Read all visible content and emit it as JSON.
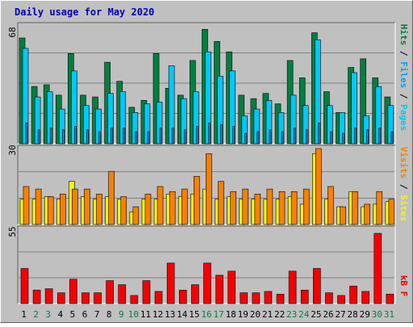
{
  "title": "Daily usage for May 2020",
  "colors": {
    "background": "#c0c0c0",
    "plot": "#c0c0c0",
    "title": "#0000c0",
    "hits": "#008040",
    "files": "#00c8f8",
    "pages": "#00a0ff",
    "visits": "#f88000",
    "sites": "#f8f800",
    "kbytes": "#f80000",
    "weekday": "#000000",
    "weekend": "#008040"
  },
  "chart_data": [
    {
      "type": "bar",
      "panel": "hits-files-pages",
      "ymax_label": "68",
      "ylim": [
        0,
        68
      ],
      "legend": [
        "Pages",
        "Files",
        "Hits"
      ],
      "categories": [
        "1",
        "2",
        "3",
        "4",
        "5",
        "6",
        "7",
        "8",
        "9",
        "10",
        "11",
        "12",
        "13",
        "14",
        "15",
        "16",
        "17",
        "18",
        "19",
        "20",
        "21",
        "22",
        "23",
        "24",
        "25",
        "26",
        "27",
        "28",
        "29",
        "30",
        "31"
      ],
      "series": [
        {
          "name": "Hits",
          "values": [
            61,
            33,
            34,
            28,
            52,
            28,
            27,
            47,
            36,
            21,
            25,
            52,
            32,
            28,
            48,
            66,
            59,
            53,
            28,
            26,
            29,
            23,
            48,
            38,
            64,
            30,
            18,
            44,
            49,
            38,
            27
          ]
        },
        {
          "name": "Files",
          "values": [
            55,
            27,
            30,
            20,
            42,
            22,
            20,
            29,
            30,
            18,
            23,
            24,
            45,
            26,
            30,
            53,
            39,
            42,
            16,
            20,
            25,
            18,
            28,
            22,
            60,
            22,
            18,
            41,
            16,
            33,
            22
          ]
        },
        {
          "name": "Pages",
          "values": [
            12,
            8,
            9,
            8,
            10,
            8,
            7,
            9,
            9,
            7,
            7,
            9,
            9,
            8,
            10,
            12,
            11,
            10,
            6,
            7,
            8,
            7,
            9,
            8,
            12,
            7,
            6,
            9,
            8,
            9,
            7
          ]
        }
      ]
    },
    {
      "type": "bar",
      "panel": "visits-sites",
      "ymax_label": "30",
      "ylim": [
        0,
        30
      ],
      "legend": [
        "Sites",
        "Visits"
      ],
      "categories": [
        "1",
        "2",
        "3",
        "4",
        "5",
        "6",
        "7",
        "8",
        "9",
        "10",
        "11",
        "12",
        "13",
        "14",
        "15",
        "16",
        "17",
        "18",
        "19",
        "20",
        "21",
        "22",
        "23",
        "24",
        "25",
        "26",
        "27",
        "28",
        "29",
        "30",
        "31"
      ],
      "series": [
        {
          "name": "Sites",
          "values": [
            10,
            10,
            11,
            10,
            17,
            11,
            10,
            11,
            10,
            5,
            10,
            10,
            12,
            11,
            12,
            14,
            10,
            11,
            10,
            10,
            10,
            10,
            11,
            8,
            28,
            10,
            7,
            13,
            7,
            8,
            9
          ]
        },
        {
          "name": "Visits",
          "values": [
            15,
            14,
            11,
            12,
            14,
            14,
            12,
            21,
            11,
            7,
            12,
            15,
            13,
            14,
            19,
            28,
            17,
            13,
            14,
            12,
            14,
            13,
            13,
            14,
            30,
            15,
            7,
            13,
            8,
            13,
            10
          ]
        }
      ]
    },
    {
      "type": "bar",
      "panel": "kbytes",
      "ymax_label": "55",
      "ylim": [
        0,
        55
      ],
      "legend": [
        "kB F"
      ],
      "categories": [
        "1",
        "2",
        "3",
        "4",
        "5",
        "6",
        "7",
        "8",
        "9",
        "10",
        "11",
        "12",
        "13",
        "14",
        "15",
        "16",
        "17",
        "18",
        "19",
        "20",
        "21",
        "22",
        "23",
        "24",
        "25",
        "26",
        "27",
        "28",
        "29",
        "30",
        "31"
      ],
      "series": [
        {
          "name": "kB F",
          "values": [
            26,
            10,
            11,
            8,
            18,
            8,
            8,
            17,
            14,
            6,
            17,
            9,
            30,
            10,
            14,
            30,
            21,
            24,
            8,
            8,
            9,
            7,
            24,
            10,
            26,
            8,
            6,
            13,
            9,
            52,
            7
          ]
        }
      ]
    }
  ],
  "weekend_days": [
    "2",
    "3",
    "9",
    "10",
    "16",
    "17",
    "23",
    "24",
    "30",
    "31"
  ]
}
